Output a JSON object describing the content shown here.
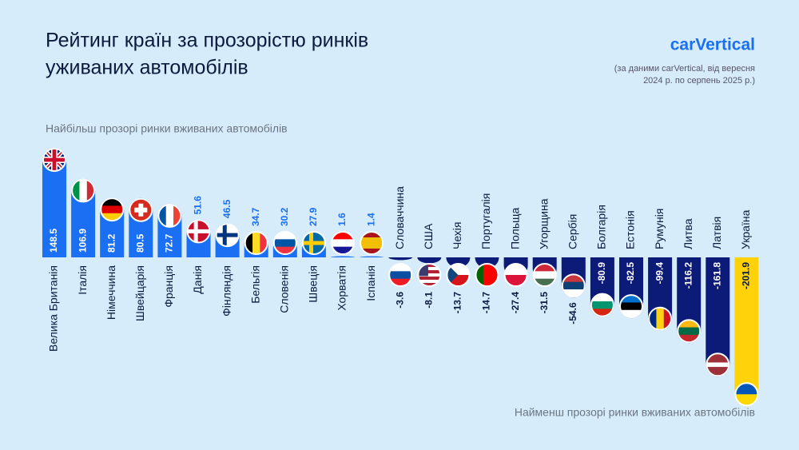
{
  "chart_data": {
    "type": "bar",
    "title": [
      "Рейтинг країн за прозорістю ринків",
      "уживаних автомобілів"
    ],
    "logo": "carVertical",
    "source": [
      "(за даними carVertical, від вересня",
      "2024 р. по серпень 2025 р.)"
    ],
    "top_label": "Найбільш прозорі ринки вживаних автомобілів",
    "bottom_label": "Найменш прозорі ринки вживаних автомобілів",
    "categories": [
      "Велика Британія",
      "Італія",
      "Німеччина",
      "Швейцарія",
      "Франція",
      "Данія",
      "Фінляндія",
      "Бельгія",
      "Словенія",
      "Швеція",
      "Хорватія",
      "Іспанія",
      "Словаччина",
      "США",
      "Чехія",
      "Португалія",
      "Польща",
      "Угорщина",
      "Сербія",
      "Болгарія",
      "Естонія",
      "Румунія",
      "Литва",
      "Латвія",
      "Україна"
    ],
    "values": [
      148.5,
      106.9,
      81.2,
      80.5,
      72.7,
      51.6,
      46.5,
      34.7,
      30.2,
      27.9,
      1.6,
      1.4,
      -3.6,
      -8.1,
      -13.7,
      -14.7,
      -27.4,
      -31.5,
      -54.6,
      -80.9,
      -82.5,
      -99.4,
      -116.2,
      -161.8,
      -201.9
    ],
    "colors": [
      "#1a6ff2",
      "#1a6ff2",
      "#1a6ff2",
      "#1a6ff2",
      "#1a6ff2",
      "#1a6ff2",
      "#1a6ff2",
      "#1a6ff2",
      "#1a6ff2",
      "#1a6ff2",
      "#1a6ff2",
      "#1a6ff2",
      "#0c1a78",
      "#0c1a78",
      "#0c1a78",
      "#0c1a78",
      "#0c1a78",
      "#0c1a78",
      "#0c1a78",
      "#0c1a78",
      "#0c1a78",
      "#0c1a78",
      "#0c1a78",
      "#0c1a78",
      "#ffd20a"
    ],
    "ylim": [
      -210,
      155
    ]
  }
}
